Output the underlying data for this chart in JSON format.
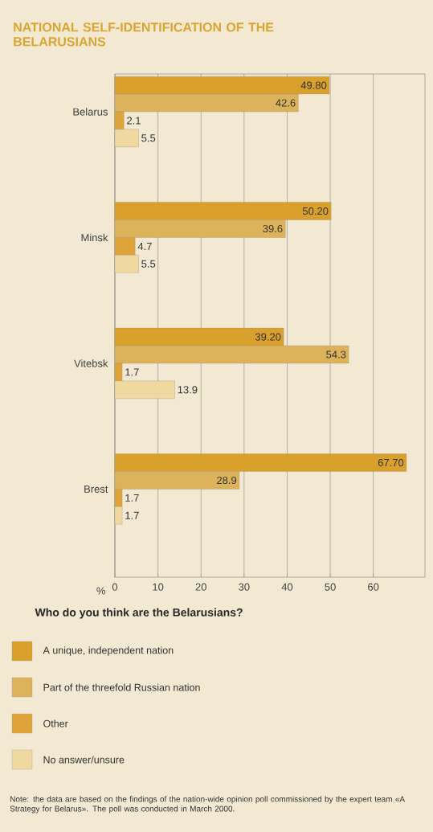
{
  "chart_data": {
    "type": "bar",
    "orientation": "horizontal",
    "title": "NATIONAL SELF-IDENTIFICATION OF THE BELARUSIANS",
    "xlabel": "%",
    "legend_title": "Who do you think are the Belarusians?",
    "categories": [
      "Belarus",
      "Minsk",
      "Vitebsk",
      "Brest"
    ],
    "series": [
      {
        "name": "A unique, independent nation",
        "color": "#d9a02c",
        "values": [
          49.8,
          50.2,
          39.2,
          67.7
        ],
        "value_labels": [
          "49.80",
          "50.20",
          "39.20",
          "67.70"
        ]
      },
      {
        "name": "Part of the threefold Russian nation",
        "color": "#dcb35a",
        "values": [
          42.6,
          39.6,
          54.3,
          28.9
        ],
        "value_labels": [
          "42.6",
          "39.6",
          "54.3",
          "28.9"
        ]
      },
      {
        "name": "Other",
        "color": "#dea43a",
        "values": [
          2.1,
          4.7,
          1.7,
          1.7
        ],
        "value_labels": [
          "2.1",
          "4.7",
          "1.7",
          "1.7"
        ]
      },
      {
        "name": "No answer/unsure",
        "color": "#efd9a0",
        "values": [
          5.5,
          5.5,
          13.9,
          1.7
        ],
        "value_labels": [
          "5.5",
          "5.5",
          "13.9",
          "1.7"
        ]
      }
    ],
    "xlim": [
      0,
      72
    ],
    "xticks": [
      0,
      10,
      20,
      30,
      40,
      50,
      60
    ],
    "grid": "x",
    "legend": "bottom",
    "annotations": [
      "Note: the data are based on the findings of the nation-wide opinion poll commissioned by the expert team «A Strategy for Belarus». The poll was conducted in March 2000."
    ]
  }
}
